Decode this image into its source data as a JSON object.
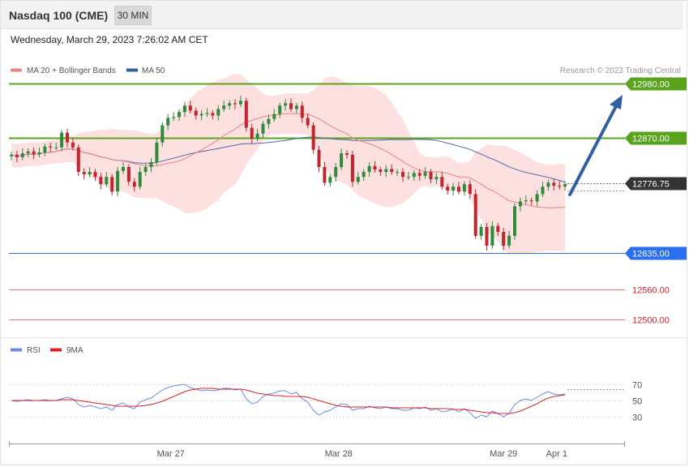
{
  "header": {
    "title": "Nasdaq 100 (CME)",
    "timeframe": "30 MIN"
  },
  "datetime": "Wednesday, March 29, 2023 7:26:02 AM CET",
  "credit": "Research © 2023 Trading Central",
  "colors": {
    "green_level": "#5aa41d",
    "blue_level": "#2a6ef2",
    "red_level": "#f08080",
    "candle_up": "#2e8b3a",
    "candle_down": "#c0262c",
    "band_fill": "#fde0e0",
    "ma20": "#f08080",
    "ma50": "#4a6bb0",
    "arrow": "#2f5ea4",
    "rsi": "#6b8ce6",
    "rsi_ma": "#e02020"
  },
  "legend": [
    {
      "label": "MA 20 + Bollinger Bands",
      "color": "#f08080"
    },
    {
      "label": "MA 50",
      "color": "#2f5ea4"
    }
  ],
  "rsi_legend": [
    {
      "label": "RSI",
      "color": "#6b8ce6"
    },
    {
      "label": "9MA",
      "color": "#e02020"
    }
  ],
  "chart_data": {
    "type": "candlestick",
    "price_range": [
      12470,
      12990
    ],
    "levels": [
      {
        "value": 12980.0,
        "label": "12980.00",
        "kind": "resistance"
      },
      {
        "value": 12870.0,
        "label": "12870.00",
        "kind": "resistance"
      },
      {
        "value": 12776.75,
        "label": "12776.75",
        "kind": "last"
      },
      {
        "value": 12635.0,
        "label": "12635.00",
        "kind": "support"
      },
      {
        "value": 12560.0,
        "label": "12560.00",
        "kind": "minor"
      },
      {
        "value": 12500.0,
        "label": "12500.00",
        "kind": "minor"
      }
    ],
    "x_labels": [
      "Mar 27",
      "Mar 28",
      "Mar 29",
      "Apr 1"
    ],
    "x_label_index": [
      28.5,
      58.5,
      88,
      97.5
    ],
    "close": [
      12835,
      12830,
      12838,
      12842,
      12836,
      12840,
      12852,
      12850,
      12850,
      12880,
      12860,
      12850,
      12800,
      12795,
      12800,
      12790,
      12775,
      12790,
      12760,
      12802,
      12810,
      12780,
      12770,
      12800,
      12810,
      12820,
      12860,
      12895,
      12910,
      12912,
      12922,
      12935,
      12925,
      12915,
      12918,
      12920,
      12915,
      12928,
      12935,
      12940,
      12938,
      12945,
      12890,
      12868,
      12878,
      12898,
      12908,
      12918,
      12935,
      12940,
      12928,
      12935,
      12910,
      12895,
      12845,
      12810,
      12778,
      12790,
      12810,
      12838,
      12835,
      12780,
      12790,
      12800,
      12812,
      12805,
      12800,
      12806,
      12800,
      12800,
      12790,
      12790,
      12798,
      12792,
      12800,
      12785,
      12790,
      12770,
      12762,
      12770,
      12760,
      12775,
      12755,
      12670,
      12688,
      12650,
      12690,
      12678,
      12650,
      12670,
      12730,
      12740,
      12742,
      12740,
      12755,
      12770,
      12778,
      12772,
      12770,
      12775
    ],
    "rsi_range": [
      0,
      100
    ],
    "rsi_levels": [
      70,
      50,
      30
    ],
    "rsi": [
      50,
      49,
      50,
      51,
      50,
      50,
      51,
      50,
      50,
      52,
      54,
      52,
      45,
      42,
      44,
      42,
      40,
      42,
      38,
      45,
      47,
      42,
      40,
      48,
      51,
      53,
      58,
      63,
      66,
      68,
      69,
      70,
      66,
      64,
      62,
      63,
      62,
      63,
      65,
      65,
      63,
      64,
      52,
      46,
      48,
      55,
      58,
      59,
      62,
      62,
      58,
      60,
      52,
      48,
      38,
      32,
      36,
      38,
      42,
      46,
      45,
      38,
      40,
      40,
      43,
      41,
      40,
      42,
      40,
      40,
      38,
      38,
      41,
      40,
      42,
      38,
      40,
      36,
      37,
      40,
      36,
      40,
      35,
      28,
      32,
      30,
      37,
      34,
      30,
      34,
      45,
      50,
      52,
      50,
      54,
      58,
      61,
      58,
      57,
      58
    ],
    "rsi_ma": [
      50,
      50,
      50,
      50,
      50,
      50,
      50,
      50,
      50,
      51,
      51,
      51,
      50,
      49,
      48,
      47,
      46,
      45,
      44,
      43,
      43,
      43,
      43,
      43,
      44,
      45,
      47,
      49,
      52,
      55,
      58,
      61,
      63,
      64,
      65,
      65,
      65,
      64,
      64,
      64,
      64,
      64,
      63,
      61,
      59,
      58,
      57,
      56,
      56,
      55,
      55,
      55,
      55,
      54,
      52,
      50,
      48,
      46,
      44,
      43,
      42,
      42,
      42,
      42,
      42,
      42,
      42,
      42,
      41,
      41,
      41,
      41,
      41,
      41,
      41,
      40,
      40,
      40,
      40,
      39,
      39,
      39,
      38,
      37,
      36,
      35,
      35,
      34,
      34,
      34,
      35,
      37,
      40,
      43,
      46,
      50,
      53,
      55,
      56,
      57
    ]
  }
}
